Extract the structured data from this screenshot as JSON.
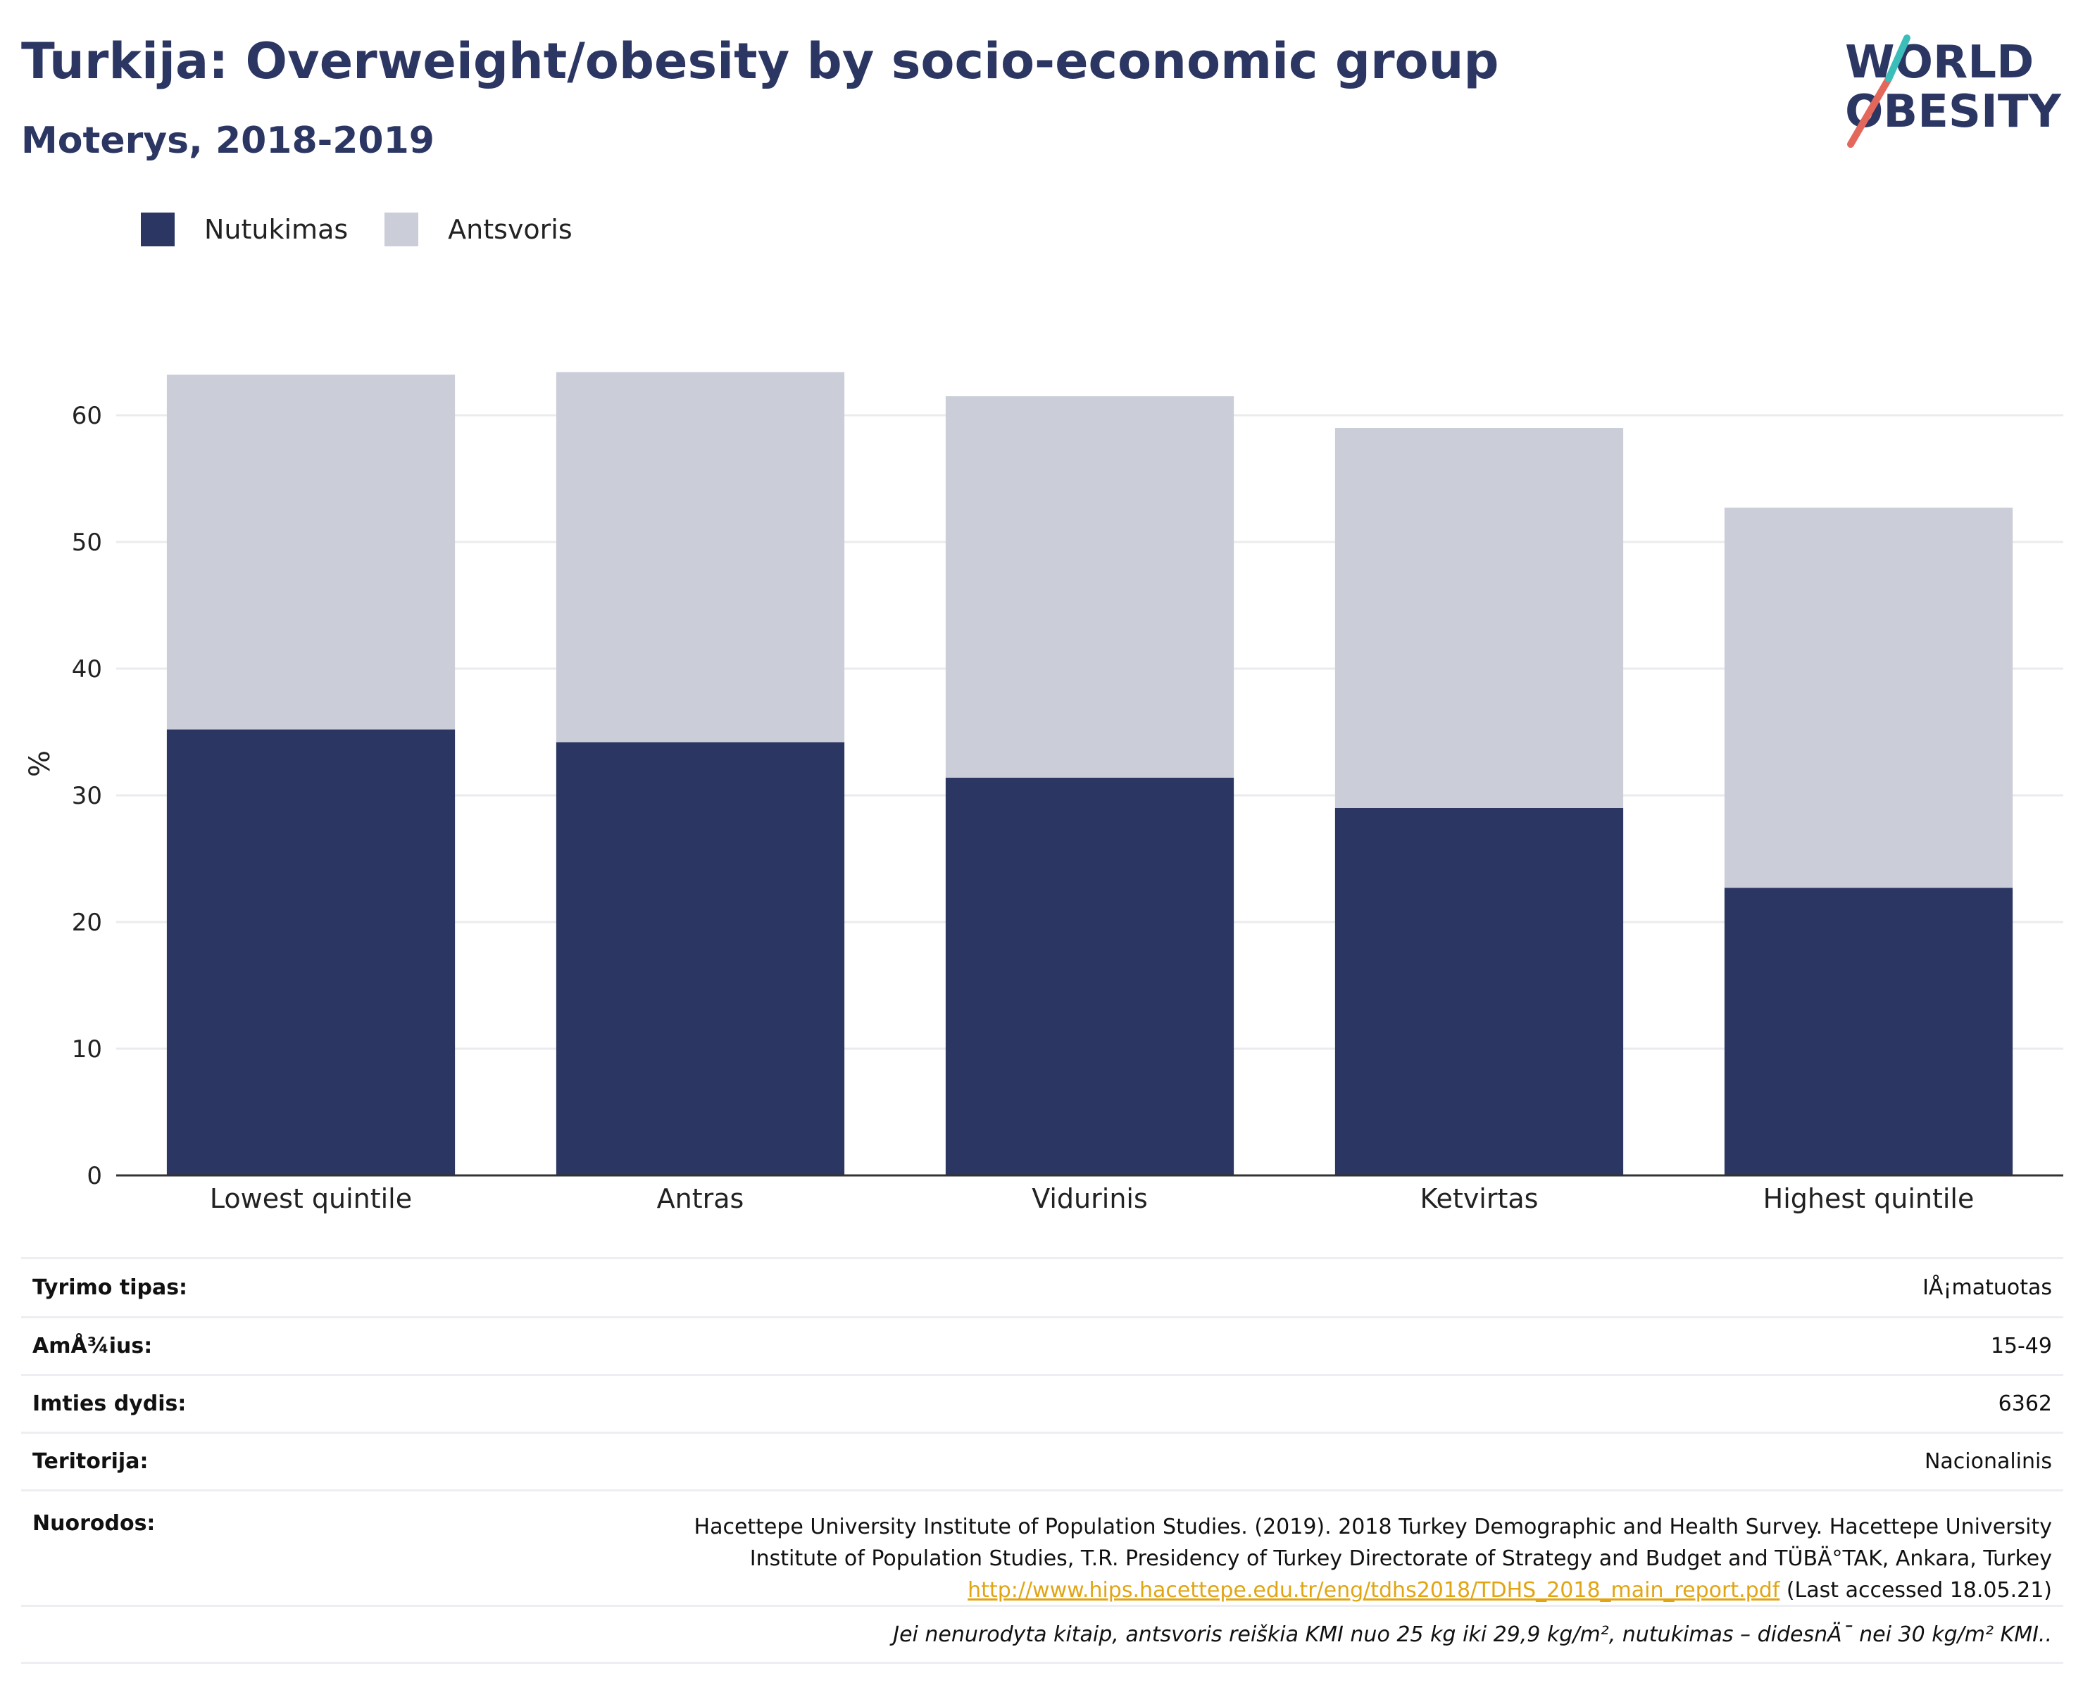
{
  "header": {
    "title": "Turkija: Overweight/obesity by socio-economic group",
    "subtitle": "Moterys, 2018-2019"
  },
  "logo": {
    "line1": "WORLD",
    "line2": "OBESITY"
  },
  "colors": {
    "obesity": "#2b3663",
    "overweight": "#cbcdd8",
    "accent_teal": "#3bbdb9",
    "accent_red": "#e4675b",
    "link": "#e1a514"
  },
  "chart_data": {
    "type": "bar",
    "stacked": true,
    "categories": [
      "Lowest quintile",
      "Antras",
      "Vidurinis",
      "Ketvirtas",
      "Highest quintile"
    ],
    "series": [
      {
        "name": "Nutukimas",
        "color": "#2b3663",
        "values": [
          35.2,
          34.2,
          31.4,
          29.0,
          22.7
        ]
      },
      {
        "name": "Antsvoris",
        "color": "#cbcdd8",
        "values": [
          28.0,
          29.2,
          30.1,
          30.0,
          30.0
        ]
      }
    ],
    "ylabel": "%",
    "ylim": [
      0,
      65
    ],
    "yticks": [
      0,
      10,
      20,
      30,
      40,
      50,
      60
    ],
    "grid": true,
    "legend": "top-left"
  },
  "meta": {
    "rows": [
      {
        "label": "Tyrimo tipas:",
        "value": "IÅ¡matuotas"
      },
      {
        "label": "AmÅ¾ius:",
        "value": "15-49"
      },
      {
        "label": "Imties dydis:",
        "value": "6362"
      },
      {
        "label": "Teritorija:",
        "value": "Nacionalinis"
      }
    ],
    "sources": {
      "label": "Nuorodos:",
      "line1": "Hacettepe University Institute of Population Studies. (2019). 2018 Turkey Demographic and Health Survey. Hacettepe University",
      "line2": "Institute of Population Studies, T.R. Presidency of Turkey Directorate of Strategy and Budget and TÜBÄ°TAK, Ankara, Turkey",
      "url": "http://www.hips.hacettepe.edu.tr/eng/tdhs2018/TDHS_2018_main_report.pdf",
      "accessed": "(Last accessed 18.05.21)"
    },
    "note": "Jei nenurodyta kitaip, antsvoris reiškia KMI nuo 25 kg iki 29,9 kg/m², nutukimas – didesnÄ¯ nei 30 kg/m² KMI.."
  }
}
